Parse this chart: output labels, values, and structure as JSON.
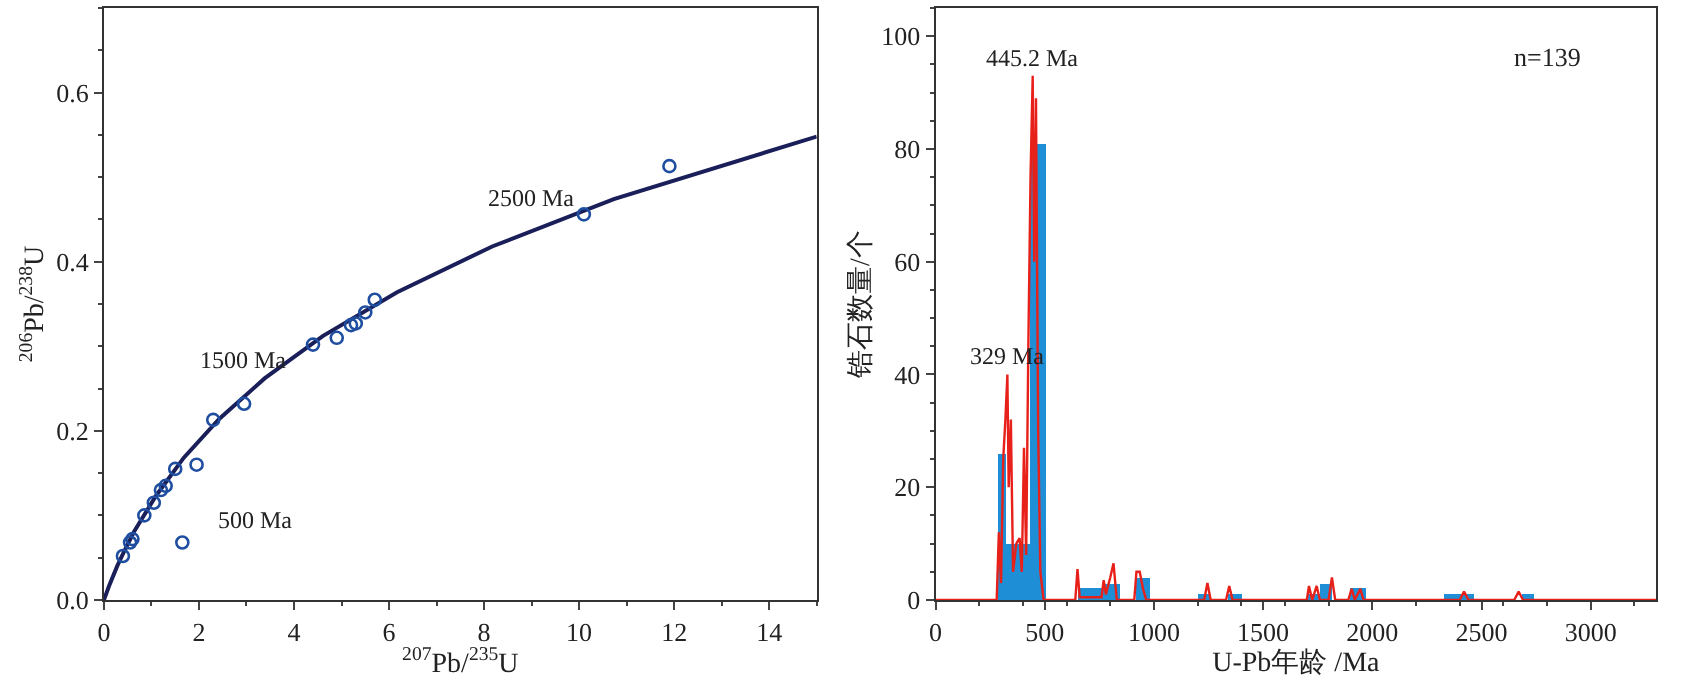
{
  "chart_data": [
    {
      "type": "line",
      "xlabel": "$^{207}$Pb/$^{235}$U",
      "ylabel": "$^{206}$Pb/$^{238}$U",
      "series": [
        {
          "type": "line",
          "color": "#1a1f5a",
          "marker": "none",
          "x": [
            0,
            0.1035,
            0.2792,
            0.4468,
            0.6363,
            1.093,
            1.6774,
            2.425,
            3.3813,
            4.6044,
            6.1688,
            8.17,
            10.73,
            15
          ],
          "values": [
            0,
            0.016,
            0.04,
            0.06,
            0.081,
            0.123,
            0.168,
            0.214,
            0.262,
            0.312,
            0.364,
            0.418,
            0.474,
            0.548
          ]
        },
        {
          "type": "scatter",
          "color": "#1f4ea0",
          "marker": "circle",
          "x": [
            0.85,
            1.05,
            1.2,
            1.3,
            1.5,
            1.95,
            1.65,
            0.6,
            0.55,
            0.4,
            2.3,
            2.95,
            4.4,
            4.9,
            5.2,
            5.3,
            5.5,
            5.7,
            10.1,
            11.9
          ],
          "values": [
            0.1,
            0.115,
            0.13,
            0.135,
            0.155,
            0.16,
            0.068,
            0.072,
            0.068,
            0.052,
            0.213,
            0.232,
            0.302,
            0.31,
            0.325,
            0.327,
            0.34,
            0.355,
            0.456,
            0.513
          ]
        }
      ],
      "annotations": [
        "500 Ma",
        "1500 Ma",
        "2500 Ma"
      ],
      "xlim": [
        0,
        15
      ],
      "xticks": [
        0,
        2,
        4,
        6,
        8,
        10,
        12,
        14
      ],
      "ylim": [
        0,
        0.7
      ],
      "yticks": [
        {
          "value": 0,
          "label": "0.0"
        },
        {
          "value": 0.2,
          "label": "0.2"
        },
        {
          "value": 0.4,
          "label": "0.4"
        },
        {
          "value": 0.6,
          "label": "0.6"
        }
      ]
    },
    {
      "type": "histogram",
      "xlabel": "U-Pb年龄 /Ma",
      "ylabel": "锆石数量/个",
      "color": "#1e8fd6",
      "bins": [
        280,
        325,
        430,
        500,
        650,
        760,
        840,
        920,
        980,
        1200,
        1250,
        1340,
        1400,
        1700,
        1760,
        1810,
        1900,
        1970,
        2330,
        2460,
        2680,
        2740
      ],
      "values": [
        26,
        10,
        81,
        0,
        2,
        3,
        0,
        4,
        0,
        1,
        0,
        1,
        0,
        1,
        3,
        0,
        2,
        0,
        1,
        0,
        1
      ],
      "series": [
        {
          "type": "line",
          "color": "#e8201a",
          "x": [
            0,
            280,
            290,
            300,
            310,
            320,
            329,
            335,
            345,
            355,
            370,
            385,
            395,
            405,
            415,
            425,
            435,
            445,
            452,
            460,
            470,
            480,
            495,
            640,
            650,
            660,
            760,
            770,
            780,
            800,
            815,
            830,
            910,
            920,
            935,
            950,
            965,
            1230,
            1245,
            1260,
            1330,
            1345,
            1360,
            1700,
            1710,
            1725,
            1745,
            1760,
            1800,
            1815,
            1830,
            1890,
            1905,
            1920,
            1945,
            1960,
            2400,
            2420,
            2440,
            2650,
            2670,
            2690,
            3300
          ],
          "values": [
            0,
            0,
            12,
            3,
            25,
            32,
            40,
            20,
            32,
            5,
            10,
            11,
            5,
            27,
            8,
            45,
            75,
            93,
            60,
            89,
            30,
            5,
            0,
            0,
            5.5,
            0.5,
            0.5,
            3.5,
            1,
            4,
            6.5,
            0,
            0,
            5,
            5,
            2,
            0,
            0,
            3,
            0,
            0,
            2.5,
            0,
            0,
            2.5,
            0,
            2.5,
            0,
            0,
            4,
            0,
            0,
            2,
            0,
            2,
            0,
            0,
            1.5,
            0,
            0,
            1.5,
            0,
            0
          ]
        }
      ],
      "annotations": [
        {
          "text": "445.2 Ma",
          "x": 445.2,
          "y": 93
        },
        {
          "text": "329 Ma",
          "x": 329,
          "y": 40
        },
        "n=139"
      ],
      "xlim": [
        0,
        3300
      ],
      "xticks": [
        0,
        500,
        1000,
        1500,
        2000,
        2500,
        3000
      ],
      "ylim": [
        0,
        105
      ],
      "yticks": [
        0,
        20,
        40,
        60,
        80,
        100
      ]
    }
  ]
}
